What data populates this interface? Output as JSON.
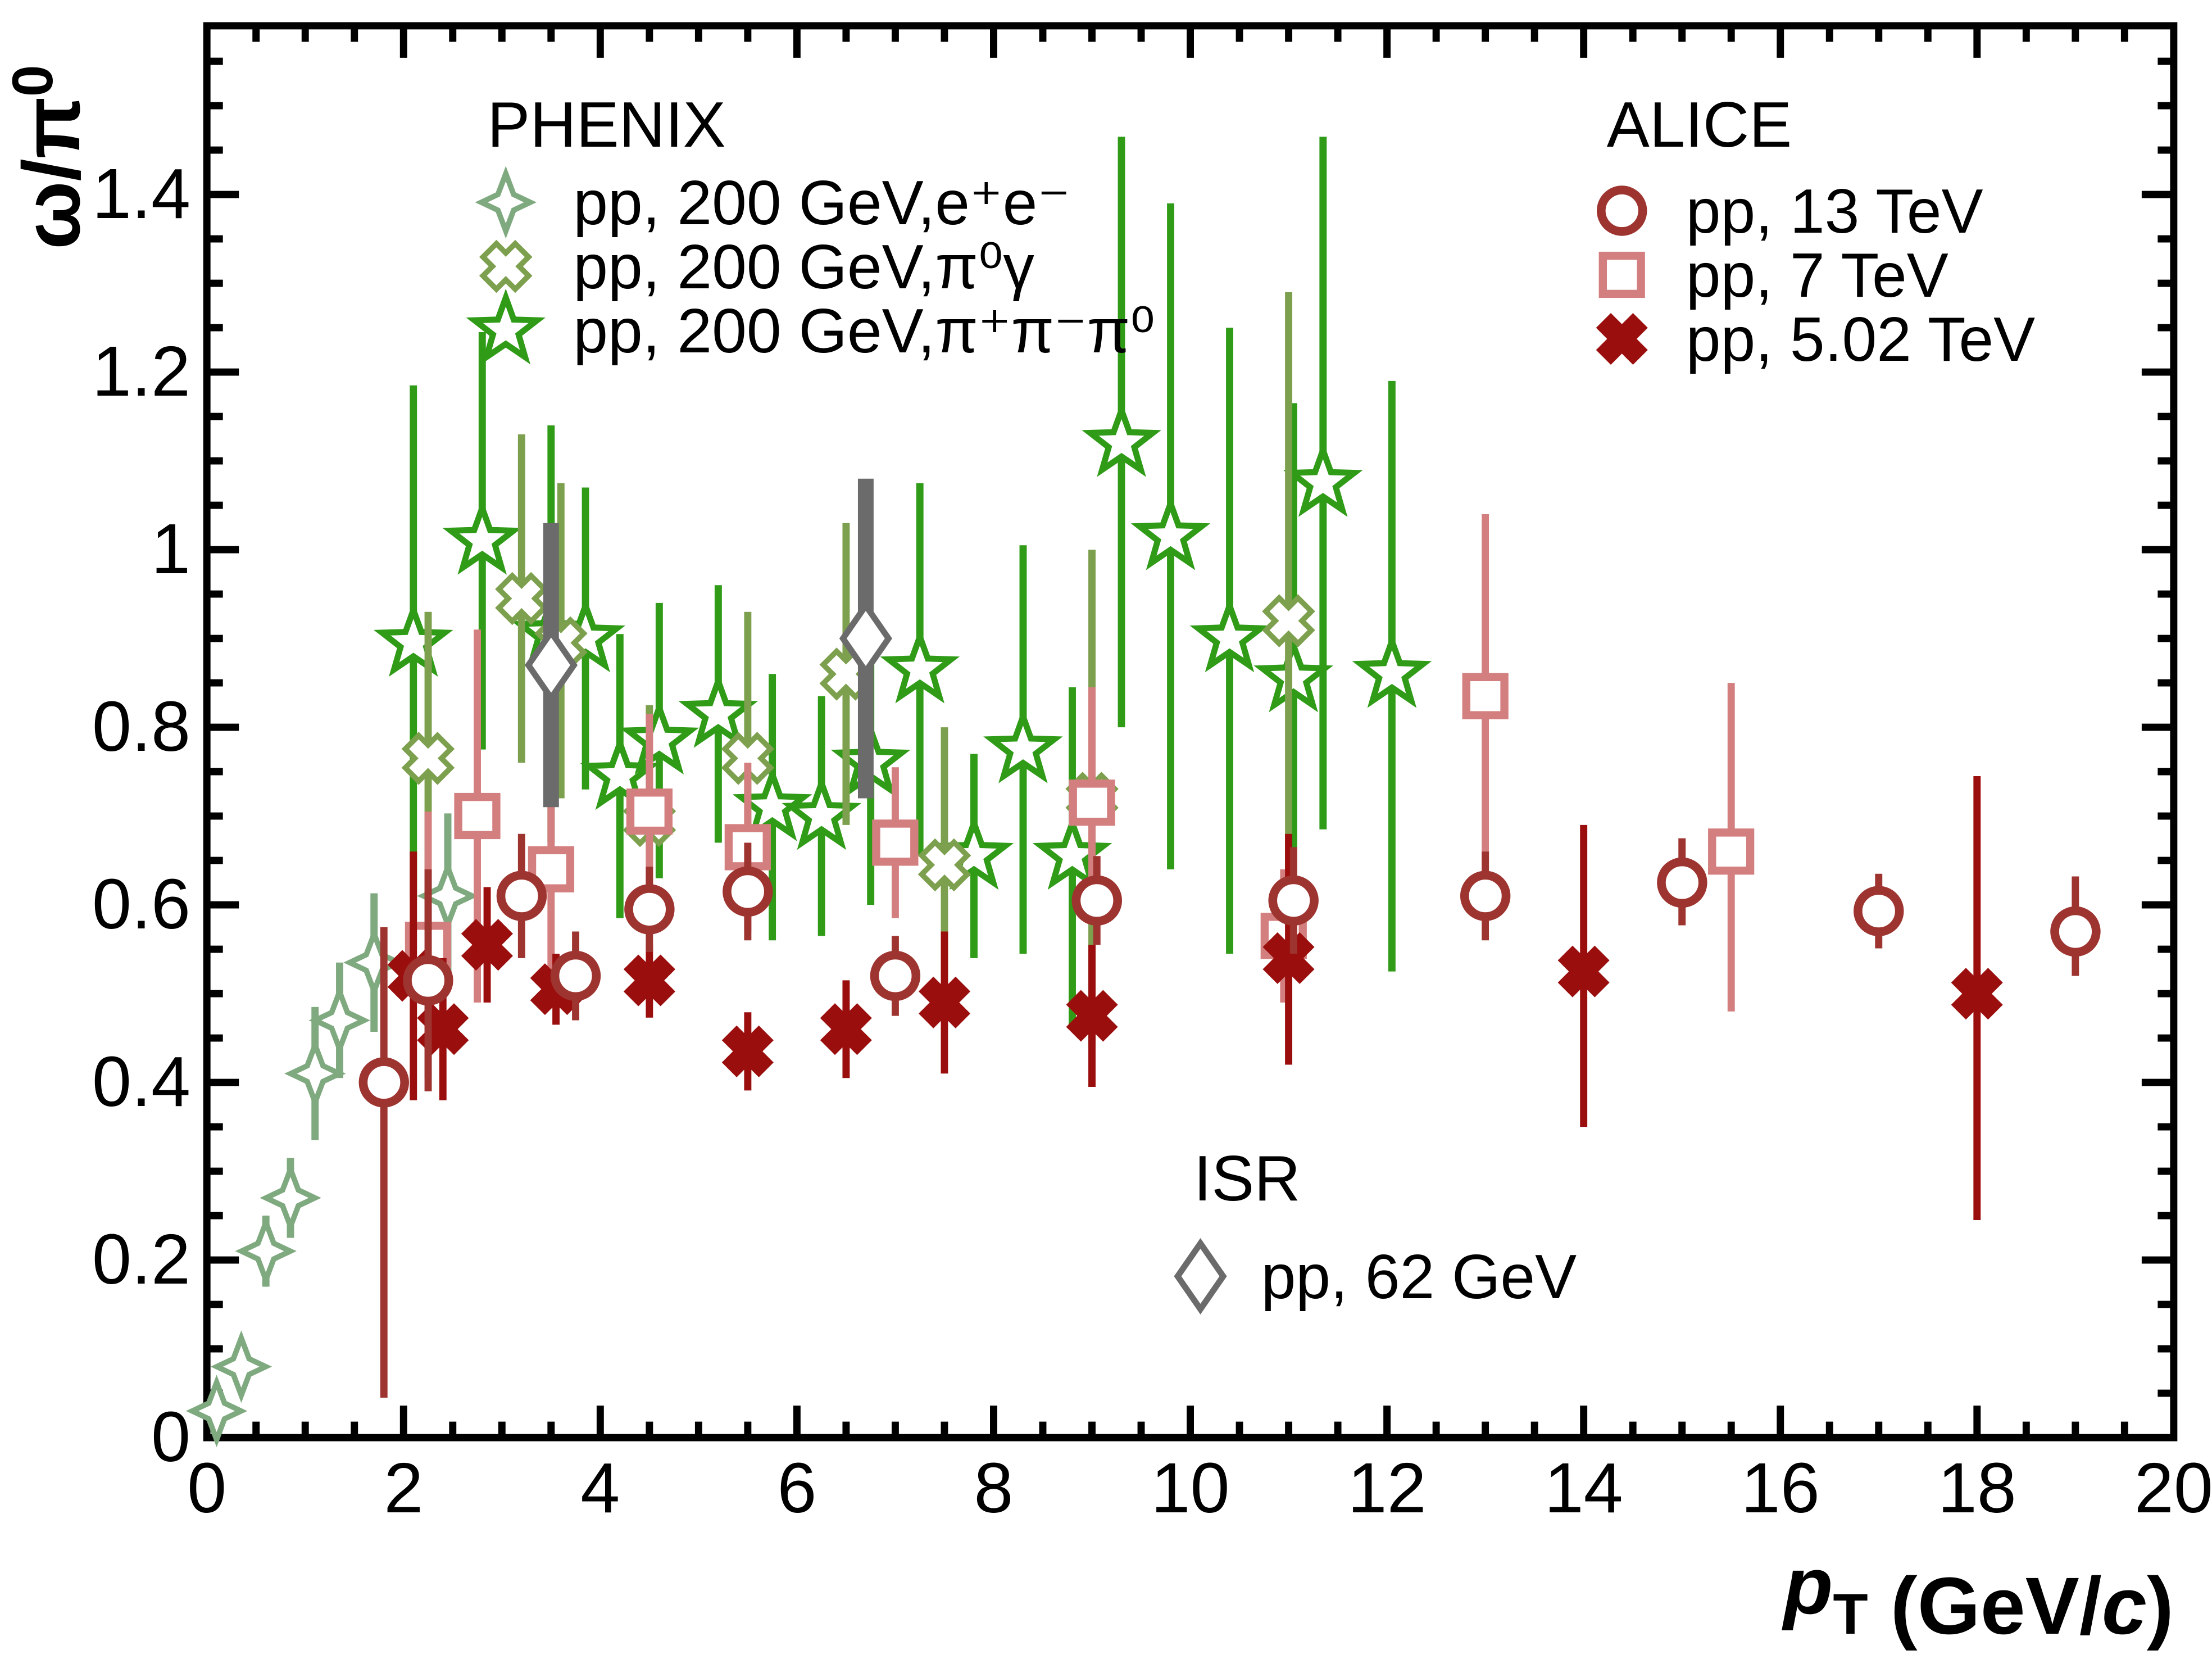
{
  "chart_data": {
    "type": "scatter",
    "xlabel_segments": [
      {
        "t": "p",
        "style": "bold-italic"
      },
      {
        "t": "T",
        "style": "subscript"
      },
      {
        "t": " (GeV/",
        "style": "bold"
      },
      {
        "t": "c",
        "style": "bold-italic"
      },
      {
        "t": ")",
        "style": "bold"
      }
    ],
    "ylabel_segments": [
      {
        "t": "ω/π",
        "style": "bold"
      },
      {
        "t": "0",
        "style": "superscript"
      }
    ],
    "xlim": [
      0,
      20
    ],
    "ylim": [
      0,
      1.59
    ],
    "x_major_tick_step": 2,
    "x_minor_tick_step": 0.5,
    "y_major_tick_step": 0.2,
    "y_minor_tick_step": 0.05,
    "x_tick_labels": [
      "0",
      "2",
      "4",
      "6",
      "8",
      "10",
      "12",
      "14",
      "16",
      "18",
      "20"
    ],
    "y_tick_labels": [
      "0",
      "0.2",
      "0.4",
      "0.6",
      "0.8",
      "1",
      "1.2",
      "1.4"
    ],
    "grid": false,
    "frame_color": "#000000",
    "series": [
      {
        "id": "phenix_3pi",
        "label": "pp, 200 GeV,π⁺π⁻π⁰",
        "marker": "open-five-star",
        "color": "#2f9b17",
        "points": [
          {
            "x": 2.1,
            "y": 0.895,
            "eu": 0.29,
            "ed": 0.29
          },
          {
            "x": 2.8,
            "y": 1.01,
            "eu": 0.235,
            "ed": 0.235
          },
          {
            "x": 3.5,
            "y": 0.905,
            "eu": 0.235,
            "ed": 0.235
          },
          {
            "x": 3.85,
            "y": 0.9,
            "eu": 0.17,
            "ed": 0.17
          },
          {
            "x": 4.2,
            "y": 0.745,
            "eu": 0.16,
            "ed": 0.16
          },
          {
            "x": 4.6,
            "y": 0.785,
            "eu": 0.155,
            "ed": 0.155
          },
          {
            "x": 5.2,
            "y": 0.815,
            "eu": 0.145,
            "ed": 0.145
          },
          {
            "x": 5.75,
            "y": 0.71,
            "eu": 0.15,
            "ed": 0.15
          },
          {
            "x": 6.25,
            "y": 0.7,
            "eu": 0.135,
            "ed": 0.135
          },
          {
            "x": 6.75,
            "y": 0.76,
            "eu": 0.16,
            "ed": 0.16
          },
          {
            "x": 7.25,
            "y": 0.865,
            "eu": 0.21,
            "ed": 0.21
          },
          {
            "x": 7.8,
            "y": 0.655,
            "eu": 0.115,
            "ed": 0.115
          },
          {
            "x": 8.3,
            "y": 0.775,
            "eu": 0.23,
            "ed": 0.23
          },
          {
            "x": 8.8,
            "y": 0.655,
            "eu": 0.19,
            "ed": 0.19
          },
          {
            "x": 9.3,
            "y": 1.12,
            "eu": 0.345,
            "ed": 0.32
          },
          {
            "x": 9.8,
            "y": 1.015,
            "eu": 0.375,
            "ed": 0.375
          },
          {
            "x": 10.4,
            "y": 0.9,
            "eu": 0.35,
            "ed": 0.355
          },
          {
            "x": 11.05,
            "y": 0.855,
            "eu": 0.31,
            "ed": 0.305
          },
          {
            "x": 11.35,
            "y": 1.075,
            "eu": 0.39,
            "ed": 0.39
          },
          {
            "x": 12.05,
            "y": 0.86,
            "eu": 0.33,
            "ed": 0.335
          }
        ]
      },
      {
        "id": "phenix_pi0g",
        "label": "pp, 200 GeV,π⁰γ",
        "marker": "open-x",
        "color": "#7da04e",
        "points": [
          {
            "x": 2.25,
            "y": 0.765,
            "eu": 0.165,
            "ed": 0.16
          },
          {
            "x": 3.2,
            "y": 0.945,
            "eu": 0.185,
            "ed": 0.185
          },
          {
            "x": 3.6,
            "y": 0.895,
            "eu": 0.18,
            "ed": 0.175
          },
          {
            "x": 4.5,
            "y": 0.695,
            "eu": 0.13,
            "ed": 0.13
          },
          {
            "x": 5.5,
            "y": 0.765,
            "eu": 0.165,
            "ed": 0.165
          },
          {
            "x": 6.5,
            "y": 0.86,
            "eu": 0.17,
            "ed": 0.17
          },
          {
            "x": 7.5,
            "y": 0.645,
            "eu": 0.155,
            "ed": 0.155
          },
          {
            "x": 9.0,
            "y": 0.72,
            "eu": 0.28,
            "ed": 0.28
          },
          {
            "x": 11.0,
            "y": 0.92,
            "eu": 0.37,
            "ed": 0.37
          }
        ]
      },
      {
        "id": "phenix_ee",
        "label": "pp, 200 GeV,e⁺e⁻",
        "marker": "open-four-star",
        "color": "#7fa97f",
        "points": [
          {
            "x": 0.1,
            "y": 0.03,
            "eu": 0.012,
            "ed": 0.012
          },
          {
            "x": 0.35,
            "y": 0.08,
            "eu": 0.02,
            "ed": 0.02
          },
          {
            "x": 0.6,
            "y": 0.21,
            "eu": 0.04,
            "ed": 0.04
          },
          {
            "x": 0.85,
            "y": 0.27,
            "eu": 0.045,
            "ed": 0.045
          },
          {
            "x": 1.1,
            "y": 0.41,
            "eu": 0.075,
            "ed": 0.075
          },
          {
            "x": 1.35,
            "y": 0.47,
            "eu": 0.065,
            "ed": 0.065
          },
          {
            "x": 1.7,
            "y": 0.535,
            "eu": 0.078,
            "ed": 0.078
          },
          {
            "x": 2.45,
            "y": 0.61,
            "eu": 0.093,
            "ed": 0.093
          }
        ]
      },
      {
        "id": "alice7",
        "label": "pp, 7 TeV",
        "marker": "open-square",
        "color": "#d47f7f",
        "points": [
          {
            "x": 2.25,
            "y": 0.555,
            "eu": 0.15,
            "ed": 0.15
          },
          {
            "x": 2.75,
            "y": 0.7,
            "eu": 0.21,
            "ed": 0.21
          },
          {
            "x": 3.5,
            "y": 0.64,
            "eu": 0.115,
            "ed": 0.115
          },
          {
            "x": 4.5,
            "y": 0.705,
            "eu": 0.11,
            "ed": 0.105
          },
          {
            "x": 5.5,
            "y": 0.665,
            "eu": 0.095,
            "ed": 0.095
          },
          {
            "x": 7.0,
            "y": 0.67,
            "eu": 0.085,
            "ed": 0.085
          },
          {
            "x": 9.0,
            "y": 0.715,
            "eu": 0.13,
            "ed": 0.13
          },
          {
            "x": 10.95,
            "y": 0.565,
            "eu": 0.075,
            "ed": 0.075
          },
          {
            "x": 13.0,
            "y": 0.835,
            "eu": 0.205,
            "ed": 0.205
          },
          {
            "x": 15.5,
            "y": 0.66,
            "eu": 0.19,
            "ed": 0.18
          }
        ]
      },
      {
        "id": "isr",
        "label": "pp, 62 GeV",
        "marker": "open-diamond",
        "color": "#6b6b6b",
        "points": [
          {
            "x": 3.5,
            "y": 0.87,
            "eu": 0.16,
            "ed": 0.16
          },
          {
            "x": 6.7,
            "y": 0.9,
            "eu": 0.18,
            "ed": 0.18
          }
        ]
      },
      {
        "id": "alice502",
        "label": "pp, 5.02 TeV",
        "marker": "filled-x",
        "color": "#9a0f0e",
        "points": [
          {
            "x": 2.1,
            "y": 0.52,
            "eu": 0.14,
            "ed": 0.14
          },
          {
            "x": 2.4,
            "y": 0.46,
            "eu": 0.08,
            "ed": 0.08
          },
          {
            "x": 2.85,
            "y": 0.555,
            "eu": 0.065,
            "ed": 0.065
          },
          {
            "x": 3.55,
            "y": 0.505,
            "eu": 0.04,
            "ed": 0.04
          },
          {
            "x": 4.5,
            "y": 0.515,
            "eu": 0.042,
            "ed": 0.042
          },
          {
            "x": 5.5,
            "y": 0.435,
            "eu": 0.044,
            "ed": 0.044
          },
          {
            "x": 6.5,
            "y": 0.46,
            "eu": 0.055,
            "ed": 0.055
          },
          {
            "x": 7.5,
            "y": 0.49,
            "eu": 0.08,
            "ed": 0.08
          },
          {
            "x": 9.0,
            "y": 0.475,
            "eu": 0.08,
            "ed": 0.08
          },
          {
            "x": 11.0,
            "y": 0.54,
            "eu": 0.14,
            "ed": 0.12
          },
          {
            "x": 14.0,
            "y": 0.525,
            "eu": 0.165,
            "ed": 0.175
          },
          {
            "x": 18.0,
            "y": 0.5,
            "eu": 0.245,
            "ed": 0.255
          }
        ]
      },
      {
        "id": "alice13",
        "label": "pp, 13 TeV",
        "marker": "open-circle",
        "color": "#9e3430",
        "points": [
          {
            "x": 1.8,
            "y": 0.4,
            "eu": 0.175,
            "ed": 0.355
          },
          {
            "x": 2.25,
            "y": 0.515,
            "eu": 0.125,
            "ed": 0.125
          },
          {
            "x": 3.2,
            "y": 0.61,
            "eu": 0.07,
            "ed": 0.07
          },
          {
            "x": 3.75,
            "y": 0.52,
            "eu": 0.05,
            "ed": 0.05
          },
          {
            "x": 4.5,
            "y": 0.595,
            "eu": 0.048,
            "ed": 0.048
          },
          {
            "x": 5.5,
            "y": 0.615,
            "eu": 0.055,
            "ed": 0.055
          },
          {
            "x": 7.0,
            "y": 0.52,
            "eu": 0.045,
            "ed": 0.045
          },
          {
            "x": 9.05,
            "y": 0.605,
            "eu": 0.05,
            "ed": 0.05
          },
          {
            "x": 11.05,
            "y": 0.605,
            "eu": 0.06,
            "ed": 0.06
          },
          {
            "x": 13.0,
            "y": 0.61,
            "eu": 0.05,
            "ed": 0.05
          },
          {
            "x": 15.0,
            "y": 0.625,
            "eu": 0.05,
            "ed": 0.048
          },
          {
            "x": 17.0,
            "y": 0.593,
            "eu": 0.042,
            "ed": 0.042
          },
          {
            "x": 19.0,
            "y": 0.57,
            "eu": 0.062,
            "ed": 0.05
          }
        ]
      }
    ],
    "legend": {
      "phenix": {
        "title": "PHENIX",
        "items": [
          {
            "series": "phenix_ee",
            "label": "pp, 200 GeV,e⁺e⁻"
          },
          {
            "series": "phenix_pi0g",
            "label": "pp, 200 GeV,π⁰γ"
          },
          {
            "series": "phenix_3pi",
            "label": "pp, 200 GeV,π⁺π⁻π⁰"
          }
        ]
      },
      "alice": {
        "title": "ALICE",
        "items": [
          {
            "series": "alice13",
            "label": "pp, 13 TeV"
          },
          {
            "series": "alice7",
            "label": "pp, 7 TeV"
          },
          {
            "series": "alice502",
            "label": "pp, 5.02 TeV"
          }
        ]
      },
      "isr": {
        "title": "ISR",
        "items": [
          {
            "series": "isr",
            "label": "pp, 62 GeV"
          }
        ]
      }
    }
  }
}
